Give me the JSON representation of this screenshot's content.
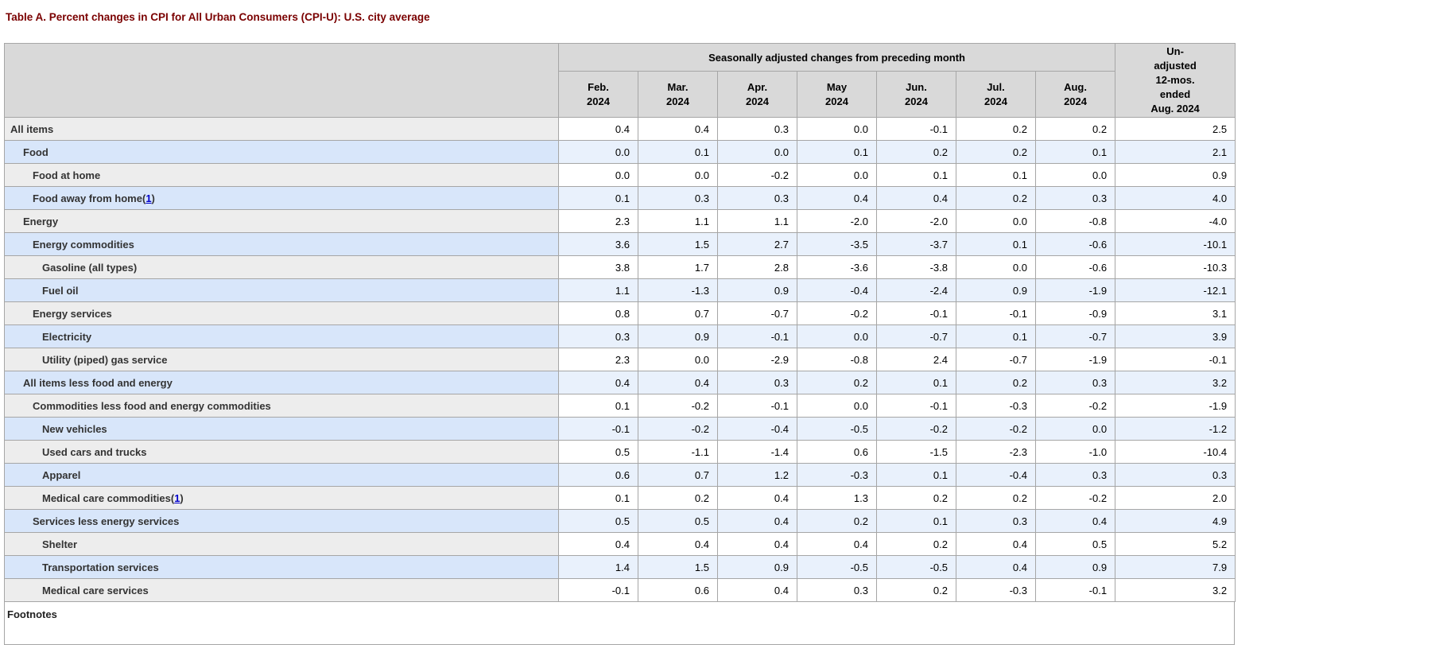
{
  "page": {
    "title": "Table A. Percent changes in CPI for All Urban Consumers (CPI-U): U.S. city average"
  },
  "colors": {
    "title_maroon": "#7a0000",
    "footnote_link_blue": "#0000cc",
    "header_bg": "#d9d9d9",
    "gray_row_label_bg": "#ededed",
    "gray_row_data_bg": "#ffffff",
    "blue_row_label_bg": "#d8e6fa",
    "blue_row_data_bg": "#e9f1fc",
    "border_gray": "#a6a6a6"
  },
  "table": {
    "header": {
      "group_label": "Seasonally adjusted changes from preceding month",
      "months": [
        {
          "month": "Feb.",
          "year": "2024"
        },
        {
          "month": "Mar.",
          "year": "2024"
        },
        {
          "month": "Apr.",
          "year": "2024"
        },
        {
          "month": "May",
          "year": "2024"
        },
        {
          "month": "Jun.",
          "year": "2024"
        },
        {
          "month": "Jul.",
          "year": "2024"
        },
        {
          "month": "Aug.",
          "year": "2024"
        }
      ],
      "unadjusted_label": "Un-\nadjusted\n12-mos.\nended\nAug. 2024"
    },
    "rows": [
      {
        "label": "All items",
        "indent": 0,
        "footnote": null,
        "values": [
          "0.4",
          "0.4",
          "0.3",
          "0.0",
          "-0.1",
          "0.2",
          "0.2",
          "2.5"
        ]
      },
      {
        "label": "Food",
        "indent": 1,
        "footnote": null,
        "values": [
          "0.0",
          "0.1",
          "0.0",
          "0.1",
          "0.2",
          "0.2",
          "0.1",
          "2.1"
        ]
      },
      {
        "label": "Food at home",
        "indent": 2,
        "footnote": null,
        "values": [
          "0.0",
          "0.0",
          "-0.2",
          "0.0",
          "0.1",
          "0.1",
          "0.0",
          "0.9"
        ]
      },
      {
        "label": "Food away from home",
        "indent": 2,
        "footnote": "1",
        "values": [
          "0.1",
          "0.3",
          "0.3",
          "0.4",
          "0.4",
          "0.2",
          "0.3",
          "4.0"
        ]
      },
      {
        "label": "Energy",
        "indent": 1,
        "footnote": null,
        "values": [
          "2.3",
          "1.1",
          "1.1",
          "-2.0",
          "-2.0",
          "0.0",
          "-0.8",
          "-4.0"
        ]
      },
      {
        "label": "Energy commodities",
        "indent": 2,
        "footnote": null,
        "values": [
          "3.6",
          "1.5",
          "2.7",
          "-3.5",
          "-3.7",
          "0.1",
          "-0.6",
          "-10.1"
        ]
      },
      {
        "label": "Gasoline (all types)",
        "indent": 3,
        "footnote": null,
        "values": [
          "3.8",
          "1.7",
          "2.8",
          "-3.6",
          "-3.8",
          "0.0",
          "-0.6",
          "-10.3"
        ]
      },
      {
        "label": "Fuel oil",
        "indent": 3,
        "footnote": null,
        "values": [
          "1.1",
          "-1.3",
          "0.9",
          "-0.4",
          "-2.4",
          "0.9",
          "-1.9",
          "-12.1"
        ]
      },
      {
        "label": "Energy services",
        "indent": 2,
        "footnote": null,
        "values": [
          "0.8",
          "0.7",
          "-0.7",
          "-0.2",
          "-0.1",
          "-0.1",
          "-0.9",
          "3.1"
        ]
      },
      {
        "label": "Electricity",
        "indent": 3,
        "footnote": null,
        "values": [
          "0.3",
          "0.9",
          "-0.1",
          "0.0",
          "-0.7",
          "0.1",
          "-0.7",
          "3.9"
        ]
      },
      {
        "label": "Utility (piped) gas service",
        "indent": 3,
        "footnote": null,
        "values": [
          "2.3",
          "0.0",
          "-2.9",
          "-0.8",
          "2.4",
          "-0.7",
          "-1.9",
          "-0.1"
        ]
      },
      {
        "label": "All items less food and energy",
        "indent": 1,
        "footnote": null,
        "values": [
          "0.4",
          "0.4",
          "0.3",
          "0.2",
          "0.1",
          "0.2",
          "0.3",
          "3.2"
        ]
      },
      {
        "label": "Commodities less food and energy commodities",
        "indent": 2,
        "footnote": null,
        "values": [
          "0.1",
          "-0.2",
          "-0.1",
          "0.0",
          "-0.1",
          "-0.3",
          "-0.2",
          "-1.9"
        ]
      },
      {
        "label": "New vehicles",
        "indent": 3,
        "footnote": null,
        "values": [
          "-0.1",
          "-0.2",
          "-0.4",
          "-0.5",
          "-0.2",
          "-0.2",
          "0.0",
          "-1.2"
        ]
      },
      {
        "label": "Used cars and trucks",
        "indent": 3,
        "footnote": null,
        "values": [
          "0.5",
          "-1.1",
          "-1.4",
          "0.6",
          "-1.5",
          "-2.3",
          "-1.0",
          "-10.4"
        ]
      },
      {
        "label": "Apparel",
        "indent": 3,
        "footnote": null,
        "values": [
          "0.6",
          "0.7",
          "1.2",
          "-0.3",
          "0.1",
          "-0.4",
          "0.3",
          "0.3"
        ]
      },
      {
        "label": "Medical care commodities",
        "indent": 3,
        "footnote": "1",
        "values": [
          "0.1",
          "0.2",
          "0.4",
          "1.3",
          "0.2",
          "0.2",
          "-0.2",
          "2.0"
        ]
      },
      {
        "label": "Services less energy services",
        "indent": 2,
        "footnote": null,
        "values": [
          "0.5",
          "0.5",
          "0.4",
          "0.2",
          "0.1",
          "0.3",
          "0.4",
          "4.9"
        ]
      },
      {
        "label": "Shelter",
        "indent": 3,
        "footnote": null,
        "values": [
          "0.4",
          "0.4",
          "0.4",
          "0.4",
          "0.2",
          "0.4",
          "0.5",
          "5.2"
        ]
      },
      {
        "label": "Transportation services",
        "indent": 3,
        "footnote": null,
        "values": [
          "1.4",
          "1.5",
          "0.9",
          "-0.5",
          "-0.5",
          "0.4",
          "0.9",
          "7.9"
        ]
      },
      {
        "label": "Medical care services",
        "indent": 3,
        "footnote": null,
        "values": [
          "-0.1",
          "0.6",
          "0.4",
          "0.3",
          "0.2",
          "-0.3",
          "-0.1",
          "3.2"
        ]
      }
    ],
    "footnotes_heading": "Footnotes"
  }
}
